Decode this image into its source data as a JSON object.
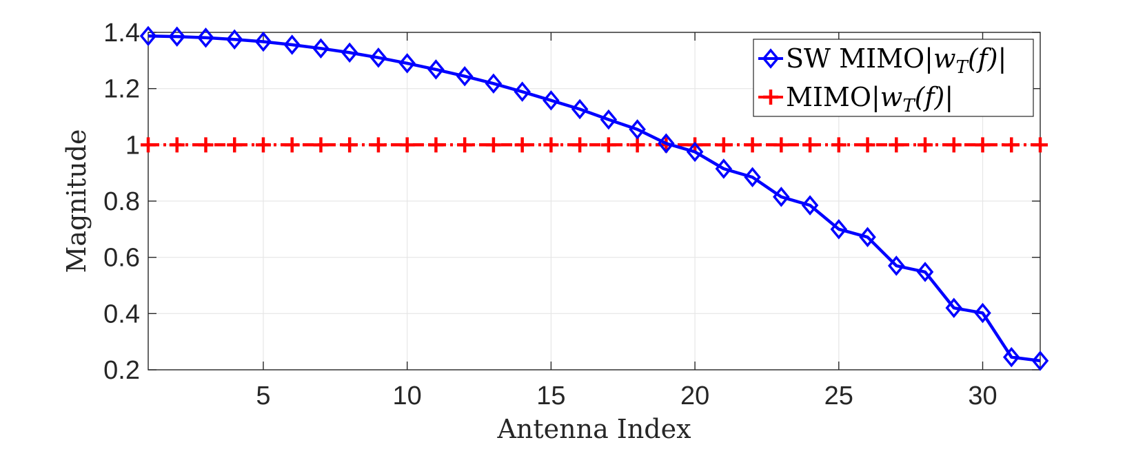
{
  "chart_data": {
    "type": "line",
    "title": "",
    "xlabel": "Antenna Index",
    "ylabel": "Magnitude",
    "xlim": [
      1,
      32
    ],
    "ylim": [
      0.2,
      1.4
    ],
    "xticks": [
      5,
      10,
      15,
      20,
      25,
      30
    ],
    "yticks": [
      0.2,
      0.4,
      0.6,
      0.8,
      1,
      1.2,
      1.4
    ],
    "ytick_labels": [
      "0.2",
      "0.4",
      "0.6",
      "0.8",
      "1",
      "1.2",
      "1.4"
    ],
    "grid": true,
    "legend_position": "top-right",
    "x": [
      1,
      2,
      3,
      4,
      5,
      6,
      7,
      8,
      9,
      10,
      11,
      12,
      13,
      14,
      15,
      16,
      17,
      18,
      19,
      20,
      21,
      22,
      23,
      24,
      25,
      26,
      27,
      28,
      29,
      30,
      31,
      32
    ],
    "series": [
      {
        "name": "SW MIMO",
        "legend_math": "|w",
        "legend_sub": "T",
        "legend_tail": "(f)|",
        "color": "#0000ff",
        "marker": "diamond",
        "line_style": "solid",
        "values": [
          1.387,
          1.385,
          1.381,
          1.375,
          1.367,
          1.356,
          1.343,
          1.328,
          1.31,
          1.29,
          1.268,
          1.244,
          1.218,
          1.189,
          1.158,
          1.127,
          1.09,
          1.055,
          1.005,
          0.975,
          0.915,
          0.885,
          0.815,
          0.785,
          0.7,
          0.672,
          0.57,
          0.548,
          0.42,
          0.402,
          0.245,
          0.232
        ]
      },
      {
        "name": "MIMO",
        "legend_math": "|w",
        "legend_sub": "T",
        "legend_tail": "(f)|",
        "color": "#ff0000",
        "marker": "plus",
        "line_style": "dashdot",
        "values": [
          1,
          1,
          1,
          1,
          1,
          1,
          1,
          1,
          1,
          1,
          1,
          1,
          1,
          1,
          1,
          1,
          1,
          1,
          1,
          1,
          1,
          1,
          1,
          1,
          1,
          1,
          1,
          1,
          1,
          1,
          1,
          1
        ]
      }
    ]
  }
}
